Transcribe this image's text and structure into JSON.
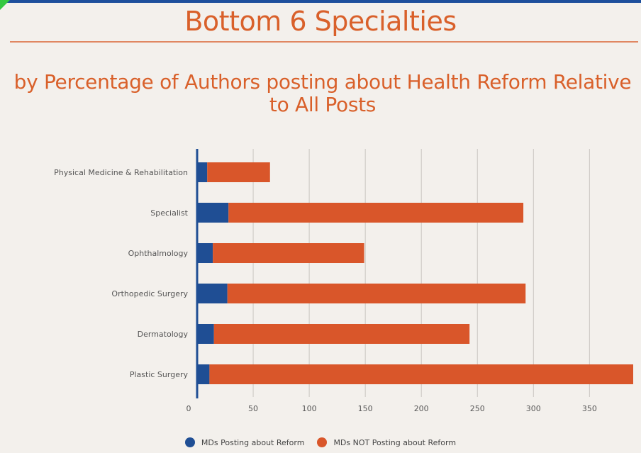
{
  "page": {
    "title": "Bottom 6 Specialties",
    "subtitle": "by Percentage of Authors posting about Health Reform Relative to All Posts"
  },
  "colors": {
    "accent": "#d9602a",
    "series_posting": "#1f4e94",
    "series_not_posting": "#d9562a",
    "background": "#f3f0ec"
  },
  "chart_data": {
    "type": "bar",
    "orientation": "horizontal",
    "stacked": true,
    "categories": [
      "Physical Medicine & Rehabilitation",
      "Specialist",
      "Ophthalmology",
      "Orthopedic Surgery",
      "Dermatology",
      "Plastic Surgery"
    ],
    "series": [
      {
        "name": "MDs Posting about Reform",
        "values": [
          9,
          28,
          14,
          27,
          15,
          11
        ]
      },
      {
        "name": "MDs NOT Posting about Reform",
        "values": [
          56,
          263,
          135,
          266,
          228,
          378
        ]
      }
    ],
    "xticks": [
      0,
      50,
      100,
      150,
      200,
      250,
      300,
      350
    ],
    "xlim": [
      0,
      389
    ],
    "grid": true,
    "legend_position": "bottom"
  }
}
